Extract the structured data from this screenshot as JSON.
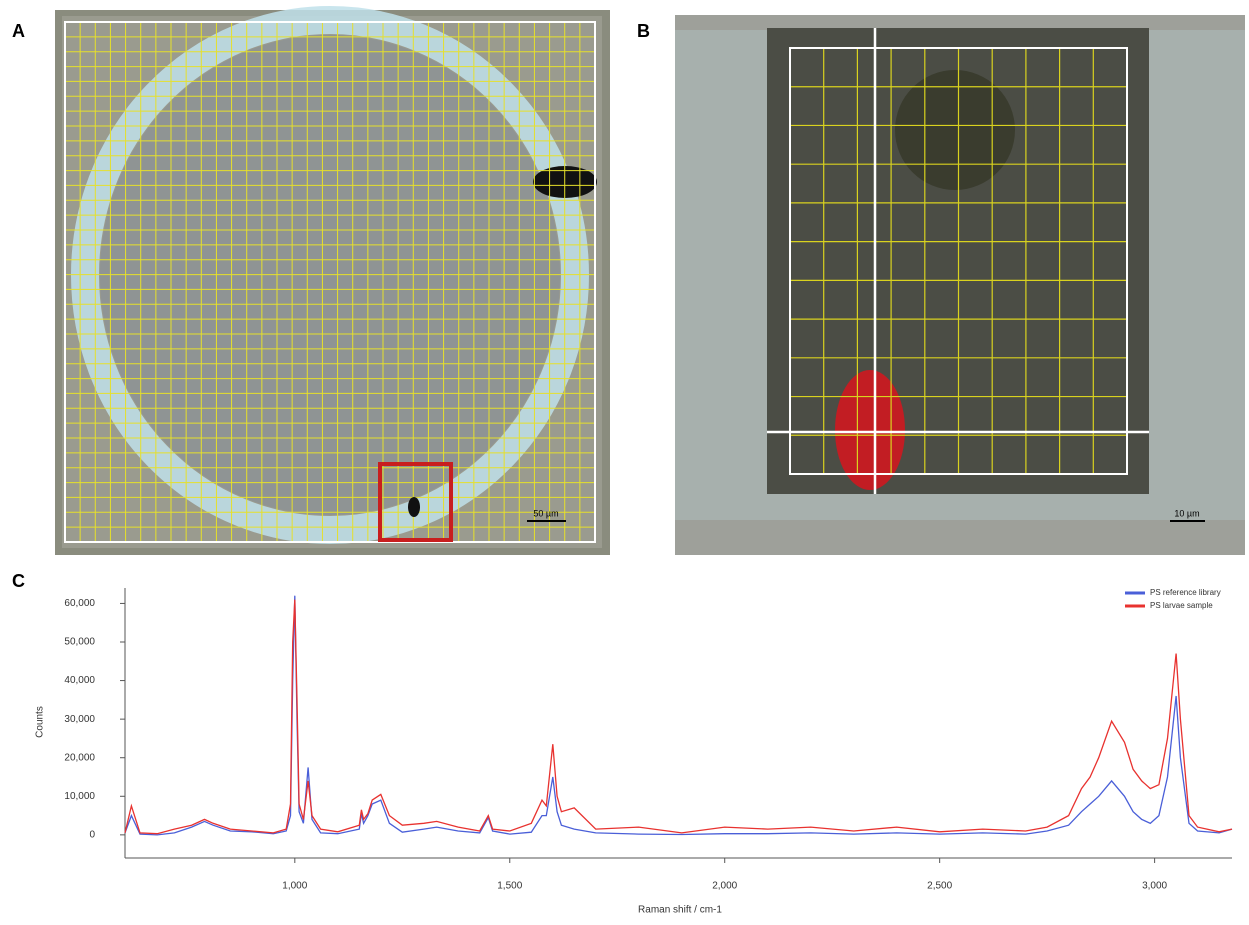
{
  "panel_labels": [
    "A",
    "B",
    "C"
  ],
  "scale_bars": [
    "50 µm",
    "10 µm"
  ],
  "chart_data": {
    "type": "line",
    "x_label": "Raman shift / cm-1",
    "y_label": "Counts",
    "xlim": [
      605,
      3180
    ],
    "ylim": [
      -6000,
      64000
    ],
    "xticks": [
      {
        "value": 1000,
        "label": "1,000"
      },
      {
        "value": 1500,
        "label": "1,500"
      },
      {
        "value": 2000,
        "label": "2,000"
      },
      {
        "value": 2500,
        "label": "2,500"
      },
      {
        "value": 3000,
        "label": "3,000"
      }
    ],
    "yticks": [
      0,
      {
        "value": 10000,
        "label": "10,000"
      },
      {
        "value": 20000,
        "label": "20,000"
      },
      {
        "value": 30000,
        "label": "30,000"
      },
      {
        "value": 40000,
        "label": "40,000"
      },
      {
        "value": 50000,
        "label": "50,000"
      },
      {
        "value": 60000,
        "label": "60,000"
      }
    ],
    "legend": "upper right",
    "x": [
      605,
      620,
      640,
      680,
      720,
      760,
      790,
      810,
      850,
      900,
      950,
      980,
      990,
      995,
      1000,
      1005,
      1010,
      1020,
      1031,
      1040,
      1060,
      1100,
      1150,
      1155,
      1160,
      1170,
      1180,
      1200,
      1220,
      1250,
      1300,
      1330,
      1380,
      1430,
      1450,
      1460,
      1500,
      1550,
      1575,
      1585,
      1600,
      1610,
      1620,
      1650,
      1700,
      1800,
      1900,
      2000,
      2100,
      2200,
      2300,
      2400,
      2500,
      2600,
      2700,
      2750,
      2800,
      2830,
      2850,
      2870,
      2900,
      2930,
      2950,
      2970,
      2990,
      3010,
      3030,
      3050,
      3060,
      3080,
      3100,
      3150,
      3180
    ],
    "series": [
      {
        "name": "PS reference library",
        "color": "#4a5fd8",
        "values": [
          500,
          5000,
          200,
          0,
          500,
          2000,
          3500,
          2500,
          1000,
          800,
          300,
          1000,
          5000,
          40000,
          62000,
          30000,
          6000,
          3000,
          17500,
          4000,
          500,
          300,
          1500,
          5500,
          3000,
          5000,
          8000,
          9000,
          3000,
          700,
          1500,
          2000,
          1000,
          500,
          4500,
          1000,
          200,
          700,
          5000,
          5000,
          15000,
          6000,
          2500,
          1500,
          500,
          200,
          100,
          300,
          300,
          500,
          200,
          500,
          200,
          500,
          200,
          1000,
          2500,
          6000,
          8000,
          10000,
          14000,
          10000,
          6000,
          4000,
          3000,
          5000,
          15000,
          36000,
          20000,
          3000,
          1000,
          500,
          1500
        ]
      },
      {
        "name": "PS larvae sample",
        "color": "#e8322f",
        "values": [
          500,
          7500,
          500,
          300,
          1500,
          2500,
          4000,
          3000,
          1500,
          1000,
          500,
          1500,
          8000,
          50000,
          61000,
          35000,
          8000,
          4000,
          14000,
          5000,
          1500,
          800,
          2500,
          6500,
          4000,
          5500,
          9000,
          10500,
          5000,
          2500,
          3000,
          3500,
          2000,
          1000,
          5000,
          1500,
          1000,
          3000,
          9000,
          7500,
          23500,
          10000,
          6000,
          7000,
          1500,
          2000,
          500,
          2000,
          1500,
          2000,
          1000,
          2000,
          800,
          1500,
          1000,
          2000,
          5000,
          12000,
          15000,
          20000,
          29500,
          24000,
          17000,
          14000,
          12000,
          13000,
          25000,
          47000,
          30000,
          5000,
          2000,
          800,
          1500
        ]
      }
    ]
  }
}
